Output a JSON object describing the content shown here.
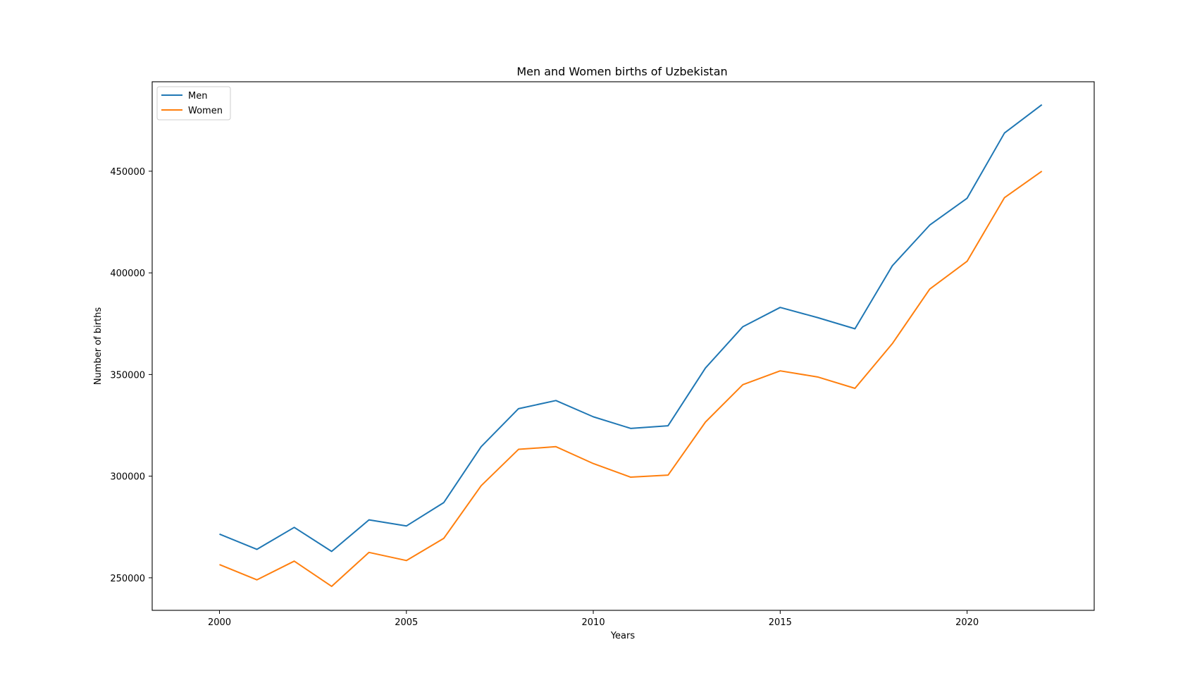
{
  "chart_data": {
    "type": "line",
    "title": "Men and Women births of Uzbekistan",
    "xlabel": "Years",
    "ylabel": "Number of births",
    "xlim": [
      1998.2,
      2023.4
    ],
    "ylim": [
      234000,
      494000
    ],
    "xticks": [
      2000,
      2005,
      2010,
      2015,
      2020
    ],
    "yticks": [
      250000,
      300000,
      350000,
      400000,
      450000
    ],
    "x": [
      2000,
      2001,
      2002,
      2003,
      2004,
      2005,
      2006,
      2007,
      2008,
      2009,
      2010,
      2011,
      2012,
      2013,
      2014,
      2015,
      2016,
      2017,
      2018,
      2019,
      2020,
      2021,
      2022
    ],
    "series": [
      {
        "name": "Men",
        "color": "#1f77b4",
        "values": [
          271500,
          264000,
          274800,
          263000,
          278500,
          275500,
          287000,
          314500,
          333200,
          337200,
          329200,
          323500,
          324800,
          353200,
          373500,
          383000,
          378000,
          372500,
          403500,
          423500,
          436700,
          468800,
          482700
        ]
      },
      {
        "name": "Women",
        "color": "#ff7f0e",
        "values": [
          256500,
          249000,
          258200,
          245800,
          262500,
          258500,
          269400,
          295300,
          313200,
          314500,
          306200,
          299500,
          300500,
          326600,
          345000,
          351800,
          348800,
          343200,
          365200,
          392000,
          405700,
          437000,
          450000
        ]
      }
    ],
    "grid": false,
    "legend": "top-left"
  }
}
